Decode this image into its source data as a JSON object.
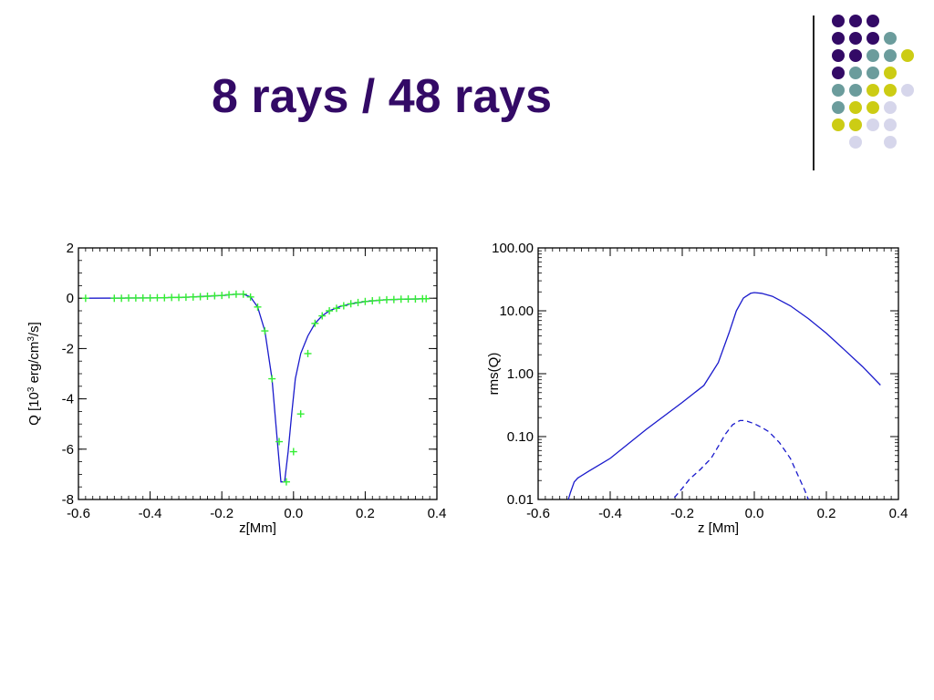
{
  "slide": {
    "title": "8 rays / 48 rays",
    "title_color": "#330a66"
  },
  "decoration": {
    "palette": {
      "purple": "#330a66",
      "teal": "#6b9c9c",
      "olive": "#cccc14",
      "lavender": "#d6d6eb"
    },
    "rows": [
      [
        "purple",
        "purple",
        "purple",
        null,
        null
      ],
      [
        "purple",
        "purple",
        "purple",
        "teal",
        null
      ],
      [
        "purple",
        "purple",
        "teal",
        "teal",
        "olive"
      ],
      [
        "purple",
        "teal",
        "teal",
        "olive",
        null
      ],
      [
        "teal",
        "teal",
        "olive",
        "olive",
        "lavender"
      ],
      [
        "teal",
        "olive",
        "olive",
        "lavender",
        null
      ],
      [
        "olive",
        "olive",
        "lavender",
        "lavender",
        null
      ],
      [
        null,
        "lavender",
        null,
        "lavender",
        null
      ]
    ]
  },
  "chart_data": [
    {
      "type": "line",
      "xlabel": "z[Mm]",
      "ylabel": "Q [10³ erg/cm³/s]",
      "xlim": [
        -0.6,
        0.4
      ],
      "ylim": [
        -8,
        2
      ],
      "xticks": [
        -0.6,
        -0.4,
        -0.2,
        0.0,
        0.2,
        0.4
      ],
      "xtick_labels": [
        "-0.6",
        "-0.4",
        "-0.2",
        "0.0",
        "0.2",
        "0.4"
      ],
      "yticks": [
        -8,
        -6,
        -4,
        -2,
        0,
        2
      ],
      "ytick_labels": [
        "-8",
        "-6",
        "-4",
        "-2",
        "0",
        "2"
      ],
      "grid": false,
      "series": [
        {
          "style": "solid",
          "color": "#1a1acc",
          "marker": "none",
          "x": [
            -0.58,
            -0.4,
            -0.3,
            -0.2,
            -0.16,
            -0.14,
            -0.12,
            -0.1,
            -0.08,
            -0.06,
            -0.045,
            -0.035,
            -0.025,
            -0.015,
            -0.005,
            0.005,
            0.02,
            0.04,
            0.06,
            0.08,
            0.1,
            0.13,
            0.16,
            0.2,
            0.25,
            0.3,
            0.37
          ],
          "y": [
            0.0,
            0.01,
            0.04,
            0.11,
            0.16,
            0.16,
            0.05,
            -0.35,
            -1.3,
            -3.2,
            -5.7,
            -7.3,
            -7.3,
            -6.1,
            -4.6,
            -3.2,
            -2.2,
            -1.5,
            -1.0,
            -0.7,
            -0.5,
            -0.33,
            -0.22,
            -0.13,
            -0.07,
            -0.04,
            -0.02
          ]
        },
        {
          "style": "markers",
          "color": "#33ee33",
          "marker": "plus",
          "x": [
            -0.58,
            -0.5,
            -0.48,
            -0.46,
            -0.44,
            -0.42,
            -0.4,
            -0.38,
            -0.36,
            -0.34,
            -0.32,
            -0.3,
            -0.28,
            -0.26,
            -0.24,
            -0.22,
            -0.2,
            -0.18,
            -0.16,
            -0.14,
            -0.12,
            -0.1,
            -0.08,
            -0.06,
            -0.04,
            -0.02,
            0.0,
            0.02,
            0.04,
            0.06,
            0.08,
            0.1,
            0.12,
            0.14,
            0.16,
            0.18,
            0.2,
            0.22,
            0.24,
            0.26,
            0.28,
            0.3,
            0.32,
            0.34,
            0.36,
            0.37
          ],
          "y": [
            0.0,
            0.0,
            0.0,
            0.01,
            0.01,
            0.01,
            0.01,
            0.02,
            0.02,
            0.03,
            0.03,
            0.04,
            0.05,
            0.06,
            0.08,
            0.1,
            0.11,
            0.14,
            0.16,
            0.16,
            0.05,
            -0.35,
            -1.3,
            -3.2,
            -5.7,
            -7.3,
            -6.1,
            -4.6,
            -2.2,
            -1.0,
            -0.7,
            -0.5,
            -0.4,
            -0.3,
            -0.22,
            -0.17,
            -0.13,
            -0.1,
            -0.08,
            -0.06,
            -0.05,
            -0.04,
            -0.03,
            -0.03,
            -0.02,
            -0.02
          ]
        }
      ]
    },
    {
      "type": "line",
      "xlabel": "z [Mm]",
      "ylabel": "rms(Q)",
      "xlim": [
        -0.6,
        0.4
      ],
      "ylim": [
        0.01,
        100
      ],
      "yscale": "log",
      "xticks": [
        -0.6,
        -0.4,
        -0.2,
        0.0,
        0.2,
        0.4
      ],
      "xtick_labels": [
        "-0.6",
        "-0.4",
        "-0.2",
        "0.0",
        "0.2",
        "0.4"
      ],
      "yticks": [
        0.01,
        0.1,
        1,
        10,
        100
      ],
      "ytick_labels": [
        "0.01",
        "0.10",
        "1.00",
        "10.00",
        "100.00"
      ],
      "grid": false,
      "series": [
        {
          "style": "solid",
          "color": "#1a1acc",
          "x": [
            -0.52,
            -0.51,
            -0.5,
            -0.49,
            -0.46,
            -0.4,
            -0.3,
            -0.2,
            -0.14,
            -0.1,
            -0.07,
            -0.05,
            -0.03,
            -0.01,
            0.0,
            0.02,
            0.05,
            0.1,
            0.15,
            0.2,
            0.25,
            0.3,
            0.35
          ],
          "y": [
            0.0085,
            0.013,
            0.019,
            0.022,
            0.028,
            0.045,
            0.13,
            0.35,
            0.65,
            1.5,
            4.5,
            10,
            16,
            19,
            19.5,
            19,
            17,
            12,
            7.5,
            4.4,
            2.4,
            1.3,
            0.66
          ]
        },
        {
          "style": "dashed",
          "color": "#1a1acc",
          "x": [
            -0.24,
            -0.22,
            -0.2,
            -0.18,
            -0.15,
            -0.12,
            -0.1,
            -0.08,
            -0.06,
            -0.04,
            -0.03,
            -0.02,
            0.0,
            0.02,
            0.04,
            0.07,
            0.1,
            0.12,
            0.14,
            0.155
          ],
          "y": [
            0.0085,
            0.011,
            0.015,
            0.021,
            0.03,
            0.045,
            0.07,
            0.11,
            0.155,
            0.18,
            0.18,
            0.176,
            0.16,
            0.14,
            0.12,
            0.08,
            0.045,
            0.025,
            0.014,
            0.0085
          ]
        }
      ]
    }
  ]
}
